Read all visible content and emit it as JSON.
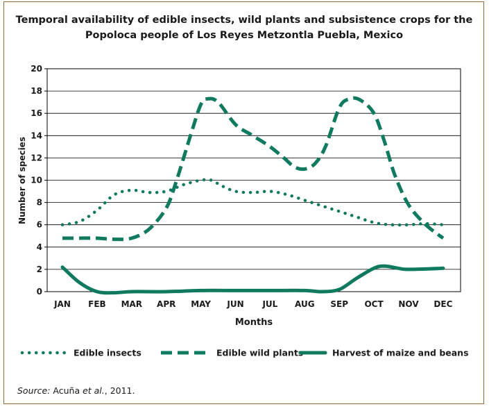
{
  "chart_data": {
    "type": "line",
    "title_line1": "Temporal availability of edible insects, wild plants and subsistence crops for the",
    "title_line2": "Popoloca people of Los Reyes Metzontla Puebla, Mexico",
    "xlabel": "Months",
    "ylabel": "Number of species",
    "ylim": [
      0,
      20
    ],
    "yticks": [
      "0",
      "2",
      "4",
      "6",
      "8",
      "10",
      "12",
      "14",
      "16",
      "18",
      "20"
    ],
    "categories": [
      "JAN",
      "FEB",
      "MAR",
      "APR",
      "MAY",
      "JUN",
      "JUL",
      "AUG",
      "SEP",
      "OCT",
      "NOV",
      "DEC"
    ],
    "grid": true,
    "legend_position": "bottom",
    "series": [
      {
        "name": "Edible insects",
        "style": "dotted",
        "color": "#0f7a5f",
        "points": [
          [
            0,
            6
          ],
          [
            0.5,
            6.3
          ],
          [
            1,
            7.3
          ],
          [
            1.5,
            8.7
          ],
          [
            2,
            9.1
          ],
          [
            2.5,
            8.9
          ],
          [
            3,
            9
          ],
          [
            3.5,
            9.6
          ],
          [
            4,
            10
          ],
          [
            4.3,
            10
          ],
          [
            4.6,
            9.5
          ],
          [
            5,
            9
          ],
          [
            5.5,
            8.9
          ],
          [
            6,
            9
          ],
          [
            6.5,
            8.7
          ],
          [
            7,
            8.2
          ],
          [
            7.5,
            7.7
          ],
          [
            8,
            7.2
          ],
          [
            8.5,
            6.7
          ],
          [
            9,
            6.2
          ],
          [
            9.5,
            6
          ],
          [
            10,
            6
          ],
          [
            10.5,
            6.1
          ],
          [
            11,
            6
          ]
        ]
      },
      {
        "name": "Edible wild plants",
        "style": "dashed",
        "color": "#0f7a5f",
        "points": [
          [
            0,
            4.8
          ],
          [
            0.5,
            4.8
          ],
          [
            1,
            4.8
          ],
          [
            1.5,
            4.7
          ],
          [
            2,
            4.8
          ],
          [
            2.5,
            5.6
          ],
          [
            3,
            7.5
          ],
          [
            3.3,
            10
          ],
          [
            3.7,
            14
          ],
          [
            4,
            16.8
          ],
          [
            4.2,
            17.3
          ],
          [
            4.5,
            17
          ],
          [
            5,
            15
          ],
          [
            5.5,
            14
          ],
          [
            6,
            13
          ],
          [
            6.4,
            12
          ],
          [
            6.7,
            11.2
          ],
          [
            7,
            11
          ],
          [
            7.3,
            11.5
          ],
          [
            7.6,
            13
          ],
          [
            8,
            16.5
          ],
          [
            8.3,
            17.3
          ],
          [
            8.6,
            17.2
          ],
          [
            9,
            16
          ],
          [
            9.3,
            13.5
          ],
          [
            9.6,
            10.5
          ],
          [
            10,
            7.8
          ],
          [
            10.5,
            6
          ],
          [
            11,
            4.8
          ]
        ]
      },
      {
        "name": "Harvest of maize and beans",
        "style": "solid",
        "color": "#0f7a5f",
        "points": [
          [
            0,
            2.2
          ],
          [
            0.5,
            0.8
          ],
          [
            1,
            0
          ],
          [
            1.5,
            -0.1
          ],
          [
            2,
            0
          ],
          [
            3,
            0
          ],
          [
            4,
            0.1
          ],
          [
            5,
            0.1
          ],
          [
            6,
            0.1
          ],
          [
            7,
            0.1
          ],
          [
            7.5,
            0
          ],
          [
            8,
            0.2
          ],
          [
            8.5,
            1.2
          ],
          [
            9,
            2.1
          ],
          [
            9.3,
            2.3
          ],
          [
            9.7,
            2.1
          ],
          [
            10,
            2
          ],
          [
            11,
            2.1
          ]
        ]
      }
    ]
  },
  "source": {
    "label": "Source:",
    "text": " Acuña ",
    "etal": "et al.",
    "year": ", 2011."
  }
}
